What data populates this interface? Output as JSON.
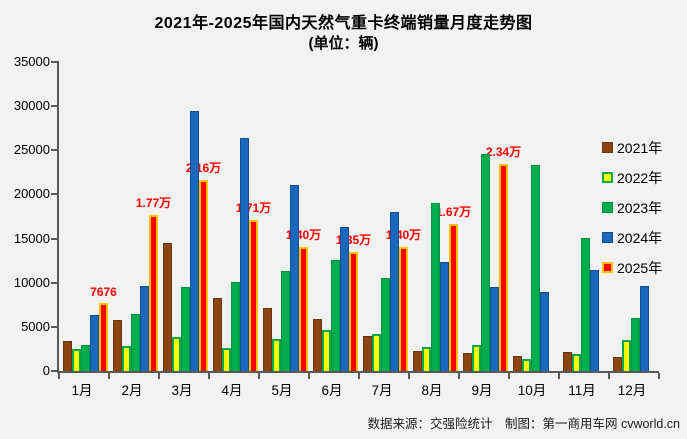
{
  "title": "2021年-2025年国内天然气重卡终端销量月度走势图",
  "subtitle": "(单位：辆)",
  "footer_text": "数据来源：交强险统计　制图：第一商用车网 cvworld.cn",
  "colors": {
    "background": "#F2F2F2",
    "axis": "#595959",
    "data_label": "#FF0000"
  },
  "chart_data": {
    "type": "bar",
    "title": "2021年-2025年国内天然气重卡终端销量月度走势图",
    "unit_label": "(单位：辆)",
    "categories": [
      "1月",
      "2月",
      "3月",
      "4月",
      "5月",
      "6月",
      "7月",
      "8月",
      "9月",
      "10月",
      "11月",
      "12月"
    ],
    "series": [
      {
        "name": "2021年",
        "color": "#8B4513",
        "border": "#6E350E",
        "border_width": 1,
        "values": [
          3400,
          5800,
          14500,
          8300,
          7100,
          5900,
          4000,
          2300,
          2000,
          1700,
          2200,
          1600
        ]
      },
      {
        "name": "2022年",
        "color": "#FFFF00",
        "border": "#00A94F",
        "border_width": 2,
        "values": [
          2500,
          2800,
          3900,
          2600,
          3600,
          4700,
          4200,
          2700,
          2900,
          1400,
          1900,
          3500
        ]
      },
      {
        "name": "2023年",
        "color": "#00AE4D",
        "border": "#009141",
        "border_width": 1,
        "values": [
          3000,
          6400,
          9500,
          10100,
          11300,
          12600,
          10500,
          19000,
          24600,
          23300,
          15100,
          6000
        ]
      },
      {
        "name": "2024年",
        "color": "#1A68BE",
        "border": "#124F92",
        "border_width": 1,
        "values": [
          6300,
          9600,
          29500,
          26400,
          21100,
          16300,
          18000,
          12300,
          9500,
          9000,
          11400,
          9600
        ]
      },
      {
        "name": "2025年",
        "color": "#FF0000",
        "border": "#FFC000",
        "border_width": 2,
        "values": [
          7676,
          17700,
          21600,
          17100,
          14000,
          13500,
          14000,
          16700,
          23400,
          null,
          null,
          null
        ],
        "labels": [
          "7676",
          "1.77万",
          "2.16万",
          "1.71万",
          "1.40万",
          "1.35万",
          "1.40万",
          "1.67万",
          "2.34万",
          "",
          "",
          ""
        ]
      }
    ],
    "ylim": [
      0,
      35000
    ],
    "ytick_step": 5000,
    "y_ticks": [
      0,
      5000,
      10000,
      15000,
      20000,
      25000,
      30000,
      35000
    ],
    "grid": false,
    "legend_position": "right"
  }
}
